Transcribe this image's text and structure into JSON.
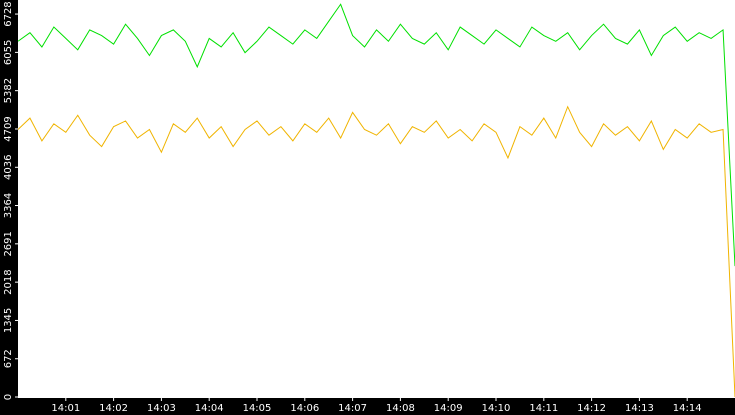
{
  "chart_data": {
    "type": "line",
    "x": [
      0,
      0.25,
      0.5,
      0.75,
      1,
      1.25,
      1.5,
      1.75,
      2,
      2.25,
      2.5,
      2.75,
      3,
      3.25,
      3.5,
      3.75,
      4,
      4.25,
      4.5,
      4.75,
      5,
      5.25,
      5.5,
      5.75,
      6,
      6.25,
      6.5,
      6.75,
      7,
      7.25,
      7.5,
      7.75,
      8,
      8.25,
      8.5,
      8.75,
      9,
      9.25,
      9.5,
      9.75,
      10,
      10.25,
      10.5,
      10.75,
      11,
      11.25,
      11.5,
      11.75,
      12,
      12.25,
      12.5,
      12.75,
      13,
      13.25,
      13.5,
      13.75,
      14,
      14.25,
      14.5,
      14.75,
      15
    ],
    "series": [
      {
        "color": "#00e000",
        "values": [
          6250,
          6400,
          6150,
          6500,
          6300,
          6100,
          6450,
          6350,
          6200,
          6550,
          6300,
          6000,
          6350,
          6450,
          6250,
          5800,
          6300,
          6150,
          6400,
          6050,
          6250,
          6500,
          6350,
          6200,
          6450,
          6300,
          6600,
          6900,
          6350,
          6150,
          6450,
          6250,
          6550,
          6300,
          6200,
          6400,
          6100,
          6500,
          6350,
          6200,
          6450,
          6300,
          6150,
          6500,
          6350,
          6250,
          6400,
          6100,
          6350,
          6550,
          6300,
          6200,
          6450,
          6000,
          6350,
          6500,
          6250,
          6400,
          6300,
          6450,
          2300
        ]
      },
      {
        "color": "#f0b400",
        "values": [
          4700,
          4900,
          4500,
          4800,
          4650,
          4950,
          4600,
          4400,
          4750,
          4850,
          4550,
          4700,
          4300,
          4800,
          4650,
          4900,
          4550,
          4750,
          4400,
          4700,
          4850,
          4600,
          4750,
          4500,
          4800,
          4650,
          4900,
          4550,
          5000,
          4700,
          4600,
          4800,
          4450,
          4750,
          4650,
          4850,
          4550,
          4700,
          4500,
          4800,
          4650,
          4200,
          4750,
          4600,
          4900,
          4550,
          5100,
          4650,
          4400,
          4800,
          4600,
          4750,
          4500,
          4850,
          4350,
          4700,
          4550,
          4800,
          4650,
          4700,
          0
        ]
      }
    ],
    "xlim": [
      0,
      15
    ],
    "xticks": [
      {
        "value": 1,
        "label": "14:01"
      },
      {
        "value": 2,
        "label": "14:02"
      },
      {
        "value": 3,
        "label": "14:03"
      },
      {
        "value": 4,
        "label": "14:04"
      },
      {
        "value": 5,
        "label": "14:05"
      },
      {
        "value": 6,
        "label": "14:06"
      },
      {
        "value": 7,
        "label": "14:07"
      },
      {
        "value": 8,
        "label": "14:08"
      },
      {
        "value": 9,
        "label": "14:09"
      },
      {
        "value": 10,
        "label": "14:10"
      },
      {
        "value": 11,
        "label": "14:11"
      },
      {
        "value": 12,
        "label": "14:12"
      },
      {
        "value": 13,
        "label": "14:13"
      },
      {
        "value": 14,
        "label": "14:14"
      }
    ],
    "ylim": [
      0,
      6975
    ],
    "yticks": [
      0,
      672,
      1345,
      2018,
      2691,
      3364,
      4036,
      4709,
      5382,
      6055,
      6728
    ]
  }
}
